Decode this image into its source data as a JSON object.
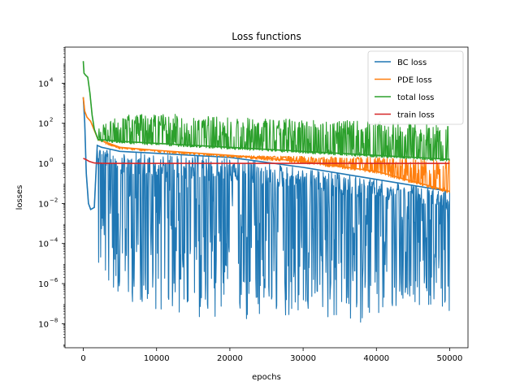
{
  "chart_data": {
    "type": "line",
    "title": "Loss functions",
    "xlabel": "epochs",
    "ylabel": "losses",
    "xlim": [
      -2500,
      52500
    ],
    "ylim_log10": [
      -9.2,
      5.8
    ],
    "yscale": "log",
    "x_ticks": [
      0,
      10000,
      20000,
      30000,
      40000,
      50000
    ],
    "x_tick_labels": [
      "0",
      "10000",
      "20000",
      "30000",
      "40000",
      "50000"
    ],
    "y_ticks_log10": [
      4,
      2,
      0,
      -2,
      -4,
      -6,
      -8
    ],
    "y_tick_base": "10",
    "y_tick_exps": [
      "4",
      "2",
      "0",
      "−2",
      "−4",
      "−6",
      "−8"
    ],
    "legend_position": "top-right",
    "grid": false,
    "series": [
      {
        "name": "BC loss",
        "color": "#1f77b4",
        "style": "band",
        "points": [
          [
            0,
            3.3
          ],
          [
            200,
            2.0
          ],
          [
            400,
            -0.5
          ],
          [
            700,
            -2.0
          ],
          [
            1000,
            -2.3
          ],
          [
            1500,
            -2.2
          ],
          [
            1900,
            0.9
          ],
          [
            2500,
            0.8
          ],
          [
            5000,
            0.6
          ],
          [
            10000,
            0.5
          ],
          [
            20000,
            0.3
          ],
          [
            30000,
            -0.2
          ],
          [
            40000,
            -0.8
          ],
          [
            50000,
            -1.4
          ]
        ],
        "lower_log10": [
          [
            1900,
            -5.3
          ],
          [
            5000,
            -6.8
          ],
          [
            10000,
            -7.3
          ],
          [
            15000,
            -7.8
          ],
          [
            20000,
            -7.6
          ],
          [
            22000,
            -8.2
          ],
          [
            30000,
            -7.5
          ],
          [
            35000,
            -8.0
          ],
          [
            40000,
            -7.9
          ],
          [
            45000,
            -7.0
          ],
          [
            50000,
            -7.4
          ]
        ]
      },
      {
        "name": "PDE loss",
        "color": "#ff7f0e",
        "style": "band",
        "points": [
          [
            0,
            3.3
          ],
          [
            200,
            2.6
          ],
          [
            500,
            2.3
          ],
          [
            1000,
            2.1
          ],
          [
            2000,
            1.2
          ],
          [
            5000,
            0.8
          ],
          [
            10000,
            0.65
          ],
          [
            20000,
            0.4
          ],
          [
            30000,
            0.1
          ],
          [
            40000,
            -0.4
          ],
          [
            50000,
            -1.4
          ]
        ],
        "upper_log10": [
          [
            2000,
            1.2
          ],
          [
            5000,
            0.8
          ],
          [
            10000,
            0.65
          ],
          [
            20000,
            0.4
          ],
          [
            30000,
            0.35
          ],
          [
            40000,
            0.3
          ],
          [
            50000,
            0.2
          ]
        ]
      },
      {
        "name": "total loss",
        "color": "#2ca02c",
        "style": "band",
        "points": [
          [
            0,
            5.1
          ],
          [
            100,
            4.5
          ],
          [
            300,
            4.4
          ],
          [
            600,
            4.3
          ],
          [
            900,
            3.5
          ],
          [
            1200,
            2.4
          ],
          [
            1500,
            1.7
          ],
          [
            2000,
            1.2
          ],
          [
            5000,
            1.1
          ],
          [
            10000,
            1.0
          ],
          [
            20000,
            0.8
          ],
          [
            30000,
            0.6
          ],
          [
            40000,
            0.4
          ],
          [
            50000,
            0.2
          ]
        ],
        "upper_log10": [
          [
            2000,
            1.8
          ],
          [
            5000,
            2.4
          ],
          [
            10000,
            2.5
          ],
          [
            20000,
            2.3
          ],
          [
            30000,
            2.2
          ],
          [
            40000,
            2.1
          ],
          [
            50000,
            1.9
          ]
        ]
      },
      {
        "name": "train loss",
        "color": "#d62728",
        "style": "line",
        "points": [
          [
            0,
            0.25
          ],
          [
            300,
            0.2
          ],
          [
            800,
            0.1
          ],
          [
            1500,
            0.02
          ],
          [
            3000,
            0.0
          ],
          [
            50000,
            0.0
          ]
        ]
      }
    ]
  }
}
